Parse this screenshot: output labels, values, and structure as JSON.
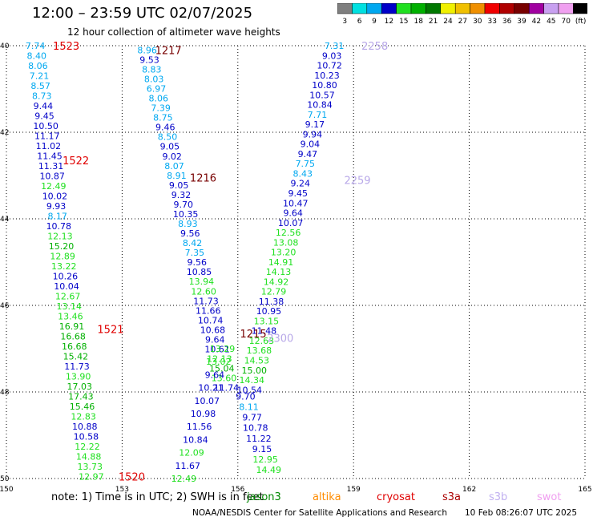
{
  "header": {
    "title": "12:00 – 23:59 UTC 02/07/2025",
    "subtitle": "12 hour collection of altimeter wave heights"
  },
  "colorbar": {
    "labels": [
      "3",
      "6",
      "9",
      "12",
      "15",
      "18",
      "21",
      "24",
      "27",
      "30",
      "33",
      "36",
      "39",
      "42",
      "45",
      "70",
      "(ft)"
    ],
    "colors": [
      "#7f7f7f",
      "#00e0e0",
      "#00a8f0",
      "#0000c8",
      "#20e020",
      "#00b000",
      "#007800",
      "#f0f000",
      "#f0c000",
      "#f09000",
      "#f00000",
      "#b00000",
      "#780000",
      "#a000a0",
      "#c8a0f0",
      "#f0a0f0",
      "#000000"
    ]
  },
  "footer": {
    "note": "note:  1) Time is in UTC;  2) SWH is in feet",
    "legend": [
      {
        "name": "jason3",
        "color": "#008800"
      },
      {
        "name": "altika",
        "color": "#ff8c00"
      },
      {
        "name": "cryosat",
        "color": "#e00000"
      },
      {
        "name": "s3a",
        "color": "#aa0000"
      },
      {
        "name": "s3b",
        "color": "#c0b0f0"
      },
      {
        "name": "swot",
        "color": "#f0a0f0"
      }
    ],
    "credit": "NOAA/NESDIS Center for Satellite Applications and Research",
    "timestamp": "10 Feb 08:26:07 UTC 2025"
  },
  "chart_data": {
    "type": "scatter",
    "title": "12:00 – 23:59 UTC 02/07/2025",
    "subtitle": "12 hour collection of altimeter wave heights",
    "units": "ft",
    "xlim": [
      150,
      165
    ],
    "ylim": [
      40,
      50
    ],
    "x_ticks": [
      "150",
      "153",
      "156",
      "159",
      "162",
      "165"
    ],
    "y_ticks": [
      "40",
      "42",
      "44",
      "46",
      "48",
      "50"
    ],
    "y_tick_values": [
      40,
      42,
      44,
      46,
      48,
      50
    ],
    "grid": true,
    "time_labels": [
      {
        "text": "1523",
        "lon": 151.55,
        "lat": 40.0,
        "color": "#e00000"
      },
      {
        "text": "1522",
        "lon": 151.8,
        "lat": 42.65,
        "color": "#e00000"
      },
      {
        "text": "1521",
        "lon": 152.7,
        "lat": 46.55,
        "color": "#e00000"
      },
      {
        "text": "1520",
        "lon": 153.25,
        "lat": 49.95,
        "color": "#e00000"
      },
      {
        "text": "1217",
        "lon": 154.2,
        "lat": 40.1,
        "color": "#780000"
      },
      {
        "text": "1216",
        "lon": 155.1,
        "lat": 43.05,
        "color": "#780000"
      },
      {
        "text": "1215",
        "lon": 156.4,
        "lat": 46.65,
        "color": "#780000"
      },
      {
        "text": "2258",
        "lon": 159.55,
        "lat": 40.0,
        "color": "#b8a8e8"
      },
      {
        "text": "2259",
        "lon": 159.1,
        "lat": 43.1,
        "color": "#b8a8e8"
      },
      {
        "text": "2300",
        "lon": 157.1,
        "lat": 46.75,
        "color": "#b8a8e8"
      }
    ],
    "passes": [
      {
        "pass": "1523",
        "lon_start": 150.75,
        "lon_end": 152.2,
        "lat_start": 40.0,
        "lat_end": 49.95,
        "values": [
          7.74,
          8.4,
          8.06,
          7.21,
          8.57,
          8.73,
          9.44,
          9.45,
          10.5,
          11.17,
          11.02,
          11.45,
          11.31,
          10.87,
          12.49,
          10.02,
          9.93,
          8.17,
          10.78,
          12.13,
          15.2,
          12.89,
          13.22,
          10.26,
          10.04,
          12.67,
          13.14,
          13.46,
          16.91,
          16.68,
          16.68,
          15.42,
          11.73,
          13.9,
          17.03,
          17.43,
          15.46,
          12.83,
          10.88,
          10.58,
          12.22,
          14.88,
          13.73,
          12.97
        ]
      },
      {
        "pass": "1217",
        "lon_start": 153.65,
        "lon_end": 155.7,
        "lat_start": 40.1,
        "lat_end": 47.9,
        "values": [
          8.96,
          9.53,
          8.83,
          8.03,
          6.97,
          8.06,
          7.39,
          8.75,
          9.46,
          8.5,
          9.05,
          9.02,
          8.07,
          8.91,
          9.05,
          9.32,
          9.7,
          10.35,
          8.93,
          9.56,
          8.42,
          7.35,
          9.56,
          10.85,
          13.94,
          12.6,
          11.73,
          11.66,
          10.74,
          10.68,
          9.64,
          10.61,
          12.13,
          15.04,
          13.6,
          11.74
        ]
      },
      {
        "pass": "1216",
        "lon_start": 155.6,
        "lon_end": 154.6,
        "lat_start": 47.0,
        "lat_end": 50.0,
        "values": [
          13.29,
          13.02,
          9.64,
          10.21,
          10.07,
          10.98,
          11.56,
          10.84,
          12.09,
          11.67,
          12.49
        ]
      },
      {
        "pass": "2258",
        "lon_start": 158.5,
        "lon_end": 156.3,
        "lat_start": 40.0,
        "lat_end": 47.95,
        "values": [
          7.31,
          9.03,
          10.72,
          10.23,
          10.8,
          10.57,
          10.84,
          7.71,
          9.17,
          9.94,
          9.04,
          9.47,
          7.75,
          8.43,
          9.24,
          9.45,
          10.47,
          9.64,
          10.07,
          12.56,
          13.08,
          13.2,
          14.91,
          14.13,
          14.92,
          12.79,
          11.38,
          10.95,
          13.15,
          11.48,
          12.63,
          13.68,
          14.53,
          15.0,
          14.34,
          10.54
        ]
      },
      {
        "pass": "2300",
        "lon_start": 156.2,
        "lon_end": 156.8,
        "lat_start": 48.1,
        "lat_end": 49.8,
        "values": [
          9.7,
          8.11,
          9.77,
          10.78,
          11.22,
          9.15,
          12.95,
          14.49
        ]
      }
    ]
  }
}
